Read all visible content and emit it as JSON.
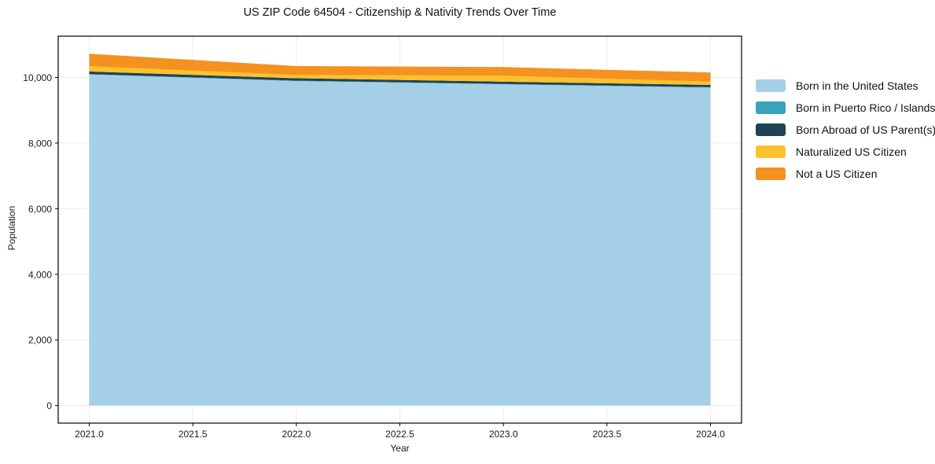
{
  "title": "US ZIP Code 64504 - Citizenship & Nativity Trends Over Time",
  "axes": {
    "xlabel": "Year",
    "ylabel": "Population",
    "x_ticks": [
      {
        "label": "2021.0",
        "value": 2021.0
      },
      {
        "label": "2021.5",
        "value": 2021.5
      },
      {
        "label": "2022.0",
        "value": 2022.0
      },
      {
        "label": "2022.5",
        "value": 2022.5
      },
      {
        "label": "2023.0",
        "value": 2023.0
      },
      {
        "label": "2023.5",
        "value": 2023.5
      },
      {
        "label": "2024.0",
        "value": 2024.0
      }
    ],
    "y_ticks": [
      {
        "label": "0",
        "value": 0
      },
      {
        "label": "2,000",
        "value": 2000
      },
      {
        "label": "4,000",
        "value": 4000
      },
      {
        "label": "6,000",
        "value": 6000
      },
      {
        "label": "8,000",
        "value": 8000
      },
      {
        "label": "10,000",
        "value": 10000
      }
    ]
  },
  "chart_data": {
    "type": "area",
    "stacked": true,
    "title": "US ZIP Code 64504 - Citizenship & Nativity Trends Over Time",
    "xlabel": "Year",
    "ylabel": "Population",
    "x": [
      2021,
      2022,
      2023,
      2024
    ],
    "series": [
      {
        "id": "born-in-us",
        "name": "Born in the United States",
        "color": "#a5cfe6",
        "values": [
          10090,
          9890,
          9790,
          9690
        ]
      },
      {
        "id": "puerto-rico-islands",
        "name": "Born in Puerto Rico / Islands",
        "color": "#38a3bb",
        "values": [
          12,
          12,
          12,
          12
        ]
      },
      {
        "id": "born-abroad",
        "name": "Born Abroad of US Parent(s)",
        "color": "#1e4356",
        "values": [
          80,
          75,
          70,
          70
        ]
      },
      {
        "id": "naturalized",
        "name": "Naturalized US Citizen",
        "color": "#fdc12e",
        "values": [
          160,
          100,
          180,
          100
        ]
      },
      {
        "id": "not-citizen",
        "name": "Not a US Citizen",
        "color": "#f5911e",
        "values": [
          380,
          270,
          265,
          280
        ]
      }
    ],
    "totals": [
      10722,
      10347,
      10317,
      10152
    ],
    "xlim": [
      2020.85,
      2024.15
    ],
    "ylim": [
      -536,
      11258
    ],
    "grid": true,
    "grid_color": "#ececec",
    "frame_color": "#000000",
    "legend_position": "right"
  }
}
